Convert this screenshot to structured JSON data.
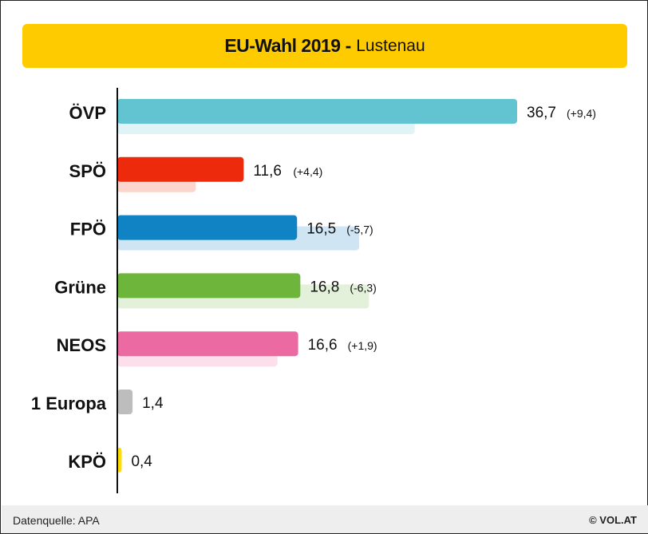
{
  "header": {
    "title_main": "EU-Wahl 2019",
    "title_separator": "-",
    "title_sub": "Lustenau"
  },
  "footer": {
    "source": "Datenquelle: APA",
    "brand": "© VOL.AT"
  },
  "chart_data": {
    "type": "bar",
    "orientation": "horizontal",
    "title": "EU-Wahl 2019 - Lustenau",
    "categories": [
      "ÖVP",
      "SPÖ",
      "FPÖ",
      "Grüne",
      "NEOS",
      "1 Europa",
      "KPÖ"
    ],
    "series": [
      {
        "values": [
          36.7,
          11.6,
          16.5,
          16.8,
          16.6,
          1.4,
          0.4
        ],
        "labels": [
          "36,7",
          "11,6",
          "16,5",
          "16,8",
          "16,6",
          "1,4",
          "0,4"
        ],
        "colors": [
          "#62c3d1",
          "#ee2a0c",
          "#1083c4",
          "#6db63b",
          "#ea6aa1",
          "#bdbdbd",
          "#fedd00"
        ]
      },
      {
        "values": [
          27.3,
          7.2,
          22.2,
          23.1,
          14.7,
          null,
          null
        ],
        "colors": [
          "#e0f3f7",
          "#fcd5cc",
          "#d0e5f3",
          "#e3f1da",
          "#fbe0ec",
          null,
          null
        ]
      }
    ],
    "changes": [
      "(+9,4)",
      "(+4,4)",
      "(-5,7)",
      "(-6,3)",
      "(+1,9)",
      "",
      ""
    ],
    "xlim": [
      0,
      37
    ],
    "grid": false,
    "legend": "none"
  }
}
